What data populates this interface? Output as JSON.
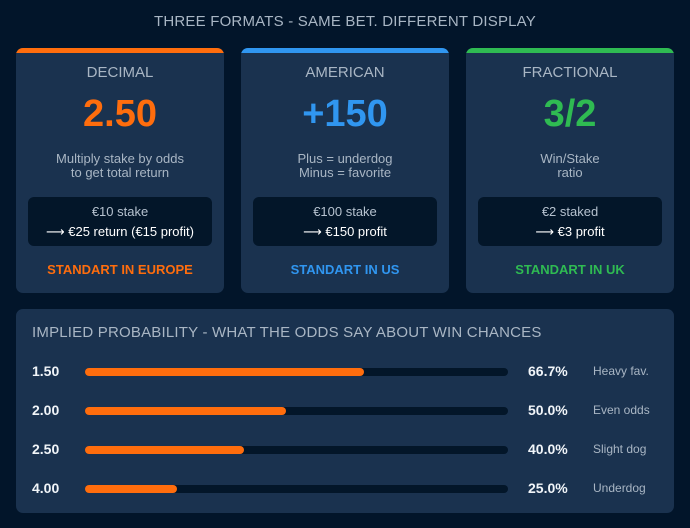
{
  "title": "THREE FORMATS - SAME BET. DIFFERENT DISPLAY",
  "colors": {
    "orange": "#ff6d0d",
    "blue": "#3096f0",
    "green": "#2fbb52",
    "panel": "#1a324f",
    "background": "#02152a"
  },
  "cards": [
    {
      "format": "DECIMAL",
      "value": "2.50",
      "desc1": "Multiply stake by odds",
      "desc2": "to get total return",
      "example1": "€10 stake",
      "example2": "⟶ €25 return (€15 profit)",
      "region": "STANDART IN EUROPE",
      "color": "#ff6d0d"
    },
    {
      "format": "AMERICAN",
      "value": "+150",
      "desc1": "Plus = underdog",
      "desc2": "Minus = favorite",
      "example1": "€100 stake",
      "example2": "⟶ €150 profit",
      "region": "STANDART IN US",
      "color": "#3096f0"
    },
    {
      "format": "FRACTIONAL",
      "value": "3/2",
      "desc1": "Win/Stake",
      "desc2": "ratio",
      "example1": "€2 staked",
      "example2": "⟶ €3 profit",
      "region": "STANDART IN UK",
      "color": "#2fbb52"
    }
  ],
  "probability": {
    "title": "IMPLIED PROBABILITY - WHAT THE ODDS SAY ABOUT WIN CHANCES",
    "rows": [
      {
        "odds": "1.50",
        "percent": "66.7%",
        "label": "Heavy fav.",
        "fill": "66%"
      },
      {
        "odds": "2.00",
        "percent": "50.0%",
        "label": "Even odds",
        "fill": "47.5%"
      },
      {
        "odds": "2.50",
        "percent": "40.0%",
        "label": "Slight dog",
        "fill": "37.6%"
      },
      {
        "odds": "4.00",
        "percent": "25.0%",
        "label": "Underdog",
        "fill": "21.7%"
      }
    ]
  }
}
